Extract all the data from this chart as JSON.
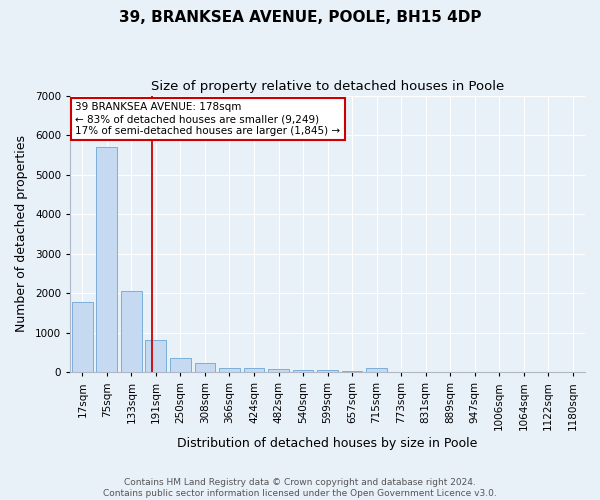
{
  "title": "39, BRANKSEA AVENUE, POOLE, BH15 4DP",
  "subtitle": "Size of property relative to detached houses in Poole",
  "xlabel": "Distribution of detached houses by size in Poole",
  "ylabel": "Number of detached properties",
  "categories": [
    "17sqm",
    "75sqm",
    "133sqm",
    "191sqm",
    "250sqm",
    "308sqm",
    "366sqm",
    "424sqm",
    "482sqm",
    "540sqm",
    "599sqm",
    "657sqm",
    "715sqm",
    "773sqm",
    "831sqm",
    "889sqm",
    "947sqm",
    "1006sqm",
    "1064sqm",
    "1122sqm",
    "1180sqm"
  ],
  "values": [
    1780,
    5700,
    2060,
    820,
    360,
    230,
    120,
    100,
    80,
    55,
    50,
    40,
    110,
    0,
    0,
    0,
    0,
    0,
    0,
    0,
    0
  ],
  "bar_color": "#c5d9f0",
  "bar_edge_color": "#7aafdb",
  "vline_x_index": 2.85,
  "vline_color": "#cc0000",
  "annotation_line1": "39 BRANKSEA AVENUE: 178sqm",
  "annotation_line2": "← 83% of detached houses are smaller (9,249)",
  "annotation_line3": "17% of semi-detached houses are larger (1,845) →",
  "annotation_box_color": "white",
  "annotation_box_edge_color": "#cc0000",
  "ylim": [
    0,
    7000
  ],
  "yticks": [
    0,
    1000,
    2000,
    3000,
    4000,
    5000,
    6000,
    7000
  ],
  "bg_color": "#e8f0f8",
  "plot_bg_color": "#e8f0f8",
  "grid_color": "#ffffff",
  "footer_line1": "Contains HM Land Registry data © Crown copyright and database right 2024.",
  "footer_line2": "Contains public sector information licensed under the Open Government Licence v3.0.",
  "title_fontsize": 11,
  "subtitle_fontsize": 9.5,
  "axis_label_fontsize": 9,
  "tick_fontsize": 7.5,
  "annotation_fontsize": 7.5,
  "footer_fontsize": 6.5
}
